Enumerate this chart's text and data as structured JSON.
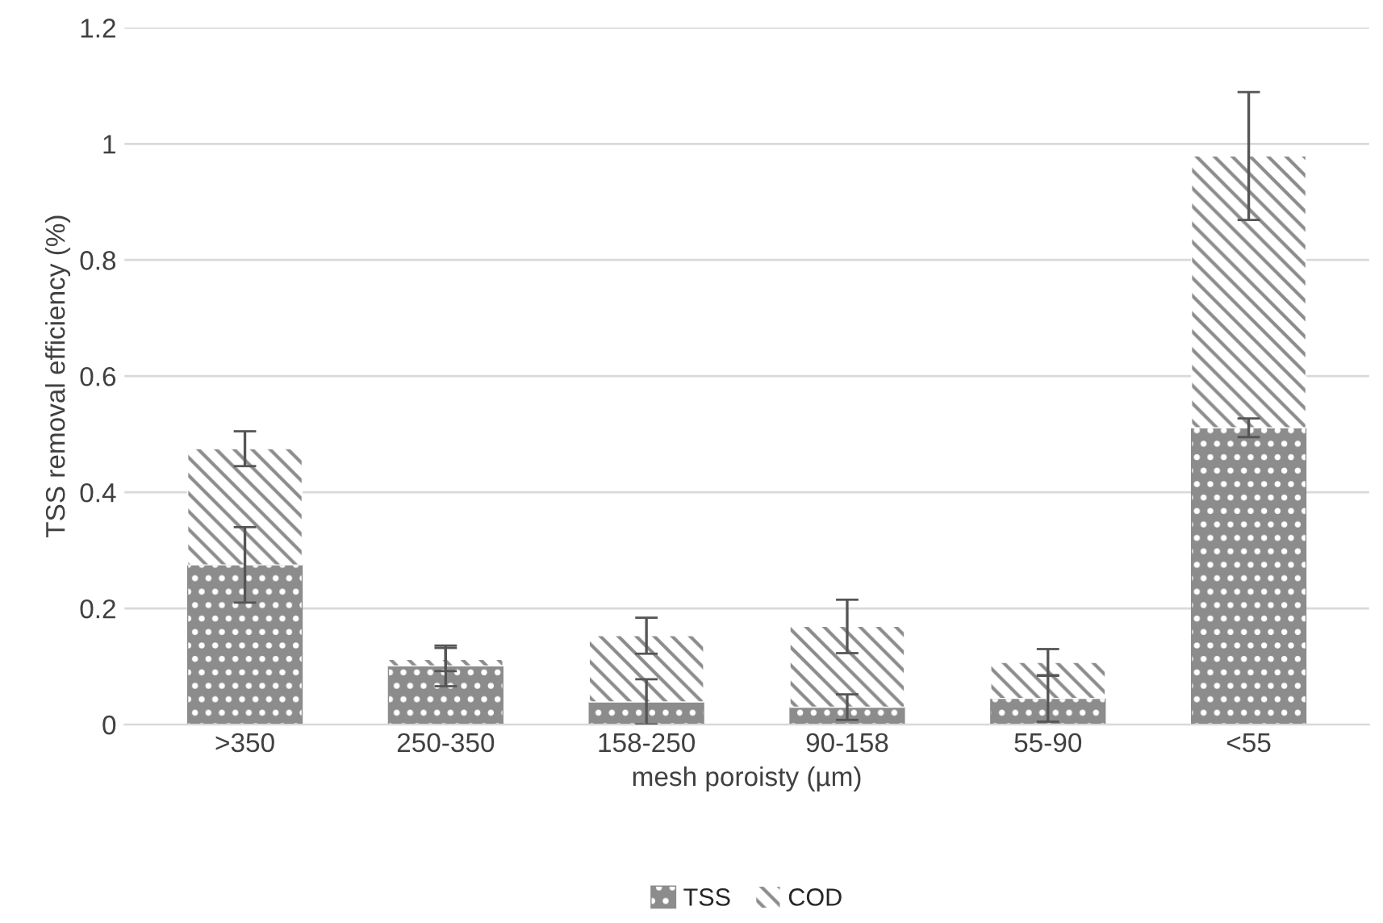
{
  "chart_data": {
    "type": "bar",
    "stacked": true,
    "xlabel": "mesh poroisty (µm)",
    "ylabel": "TSS removal efficiency (%)",
    "categories": [
      ">350",
      "250-350",
      "158-250",
      "90-158",
      "55-90",
      "<55"
    ],
    "series": [
      {
        "name": "TSS",
        "color": "#8c8c8c",
        "values": [
          0.275,
          0.101,
          0.039,
          0.03,
          0.045,
          0.511
        ],
        "errors": [
          0.065,
          0.035,
          0.039,
          0.022,
          0.04,
          0.016
        ]
      },
      {
        "name": "COD",
        "color": "#ffffff",
        "values": [
          0.2,
          0.011,
          0.114,
          0.139,
          0.062,
          0.468
        ],
        "errors": [
          0.03,
          0.02,
          0.031,
          0.046,
          0.023,
          0.11
        ]
      }
    ],
    "ylim": [
      0,
      1.2
    ],
    "yticks": [
      0,
      0.2,
      0.4,
      0.6,
      0.8,
      1,
      1.2
    ],
    "grid": "y",
    "legend": "bottom"
  }
}
